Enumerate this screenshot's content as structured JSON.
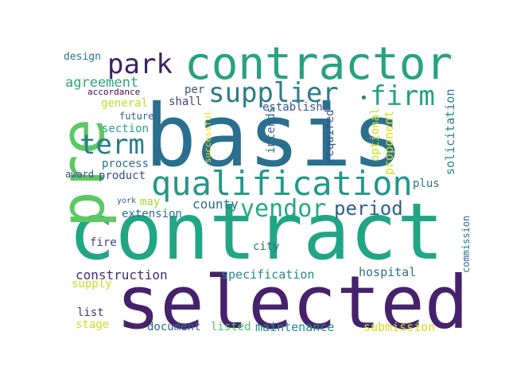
{
  "words": {
    "basis": {
      "text": "basis",
      "color": "#2a6f8e"
    },
    "contract": {
      "text": "contract",
      "color": "#21a685"
    },
    "selected": {
      "text": "selected",
      "color": "#45226b"
    },
    "pre": {
      "text": "pre",
      "color": "#5cc863"
    },
    "contractor": {
      "text": "contractor",
      "color": "#27a27f"
    },
    "qualification": {
      "text": "qualification",
      "color": "#23978a"
    },
    "supplier": {
      "text": "supplier",
      "color": "#2a7b8e"
    },
    "firm": {
      "text": "firm",
      "color": "#23a07e"
    },
    "park": {
      "text": "park",
      "color": "#3e1f65"
    },
    "term": {
      "text": "term",
      "color": "#2a7a8e"
    },
    "vendor": {
      "text": "vendor",
      "color": "#25ab7f"
    },
    "period": {
      "text": "period",
      "color": "#2f5f8a"
    },
    "agreement": {
      "text": "agreement",
      "color": "#29a57f"
    },
    "construction": {
      "text": "construction",
      "color": "#3e2d6e"
    },
    "specification": {
      "text": "specification",
      "color": "#23888e"
    },
    "hospital": {
      "text": "hospital",
      "color": "#2b6f8d"
    },
    "county": {
      "text": "county",
      "color": "#2d6c8e"
    },
    "maintenance": {
      "text": "maintenance",
      "color": "#218e8d"
    },
    "submission": {
      "text": "submission",
      "color": "#d0e11c"
    },
    "document": {
      "text": "document",
      "color": "#33668e"
    },
    "listed": {
      "text": "listed",
      "color": "#4ec36b"
    },
    "design": {
      "text": "design",
      "color": "#2a768e"
    },
    "accordance": {
      "text": "accordance",
      "color": "#440154"
    },
    "general": {
      "text": "general",
      "color": "#bbdf27"
    },
    "shall": {
      "text": "shall",
      "color": "#433e85"
    },
    "per": {
      "text": "per",
      "color": "#38568b"
    },
    "establish": {
      "text": "establish",
      "color": "#3a538b"
    },
    "section": {
      "text": "section",
      "color": "#22a884"
    },
    "future": {
      "text": "future",
      "color": "#355f8d"
    },
    "process": {
      "text": "process",
      "color": "#2f6c8e"
    },
    "product": {
      "text": "product",
      "color": "#3f4788"
    },
    "award": {
      "text": "award",
      "color": "#3f4889"
    },
    "york": {
      "text": "york",
      "color": "#38588c"
    },
    "may": {
      "text": "may",
      "color": "#a5db36"
    },
    "extension": {
      "text": "extension",
      "color": "#2e6e8e"
    },
    "fire": {
      "text": "fire",
      "color": "#424186"
    },
    "city": {
      "text": "city",
      "color": "#2a768e"
    },
    "supply": {
      "text": "supply",
      "color": "#c2df23"
    },
    "list": {
      "text": "list",
      "color": "#46327e"
    },
    "stage": {
      "text": "stage",
      "color": "#cae11f"
    },
    "plus": {
      "text": "plus",
      "color": "#2d708e"
    },
    "successful": {
      "text": "successful",
      "color": "#dde318"
    },
    "intends": {
      "text": "intends",
      "color": "#31688e"
    },
    "required": {
      "text": "required",
      "color": "#3b518b"
    },
    "optional": {
      "text": "optional",
      "color": "#c8e020"
    },
    "proponent": {
      "text": "proponent",
      "color": "#d8e219"
    },
    "solicitation": {
      "text": "solicitation",
      "color": "#26818e"
    },
    "commission": {
      "text": "commission",
      "color": "#2e6e8e"
    },
    "dot": {
      "text": "•",
      "color": "#2a7b8e"
    }
  }
}
